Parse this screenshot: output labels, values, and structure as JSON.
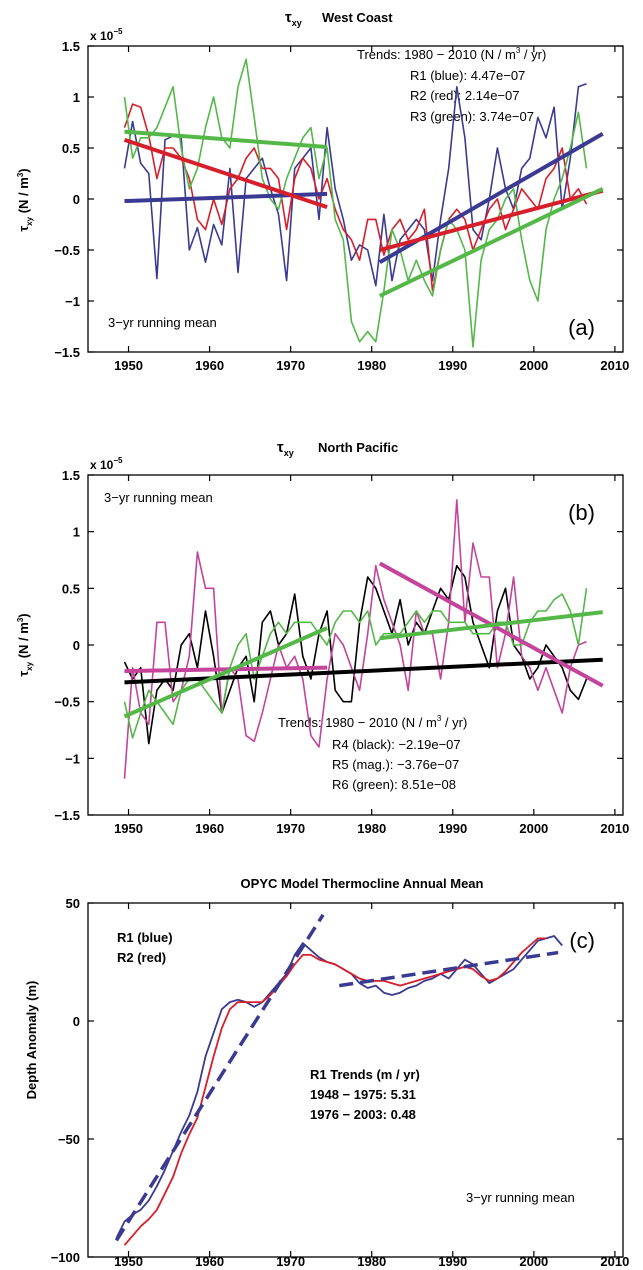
{
  "chart_data": [
    {
      "type": "line",
      "panel_label": "(a)",
      "title": "West Coast",
      "title_symbol": "τ",
      "title_symbol_sub": "xy",
      "scale_label": "x 10",
      "scale_exp": "−5",
      "ylabel_symbol": "τ",
      "ylabel_sub": "xy",
      "ylabel_unit": "(N / m",
      "ylabel_unit_exp": "3",
      "ylabel_unit_close": ")",
      "xlim": [
        1945,
        2011
      ],
      "ylim": [
        -1.5,
        1.5
      ],
      "x_ticks": [
        1950,
        1960,
        1970,
        1980,
        1990,
        2000,
        2010
      ],
      "y_ticks": [
        -1.5,
        -1,
        -0.5,
        0,
        0.5,
        1,
        1.5
      ],
      "y_tick_labels": [
        "−1.5",
        "−1",
        "−0.5",
        "0",
        "0.5",
        "1",
        "1.5"
      ],
      "annotations": {
        "trend_header": "Trends:  1980 − 2010  (N / m",
        "trend_header_exp": "3",
        "trend_header_close": " / yr)",
        "trend_lines": [
          "R1 (blue):  4.47e−07",
          "R2 (red):   2.14e−07",
          "R3 (green): 3.74e−07"
        ],
        "running_mean": "3−yr  running mean"
      },
      "series": [
        {
          "color": "#3b3a92",
          "x_start": 1949.5,
          "values": [
            0.3,
            0.76,
            0.35,
            0.25,
            -0.78,
            0.58,
            0.62,
            0.6,
            -0.5,
            -0.28,
            -0.62,
            -0.25,
            -0.45,
            0.3,
            -0.72,
            0.2,
            0.3,
            0.4,
            0.1,
            -0.15,
            -0.8,
            0.3,
            0.4,
            0.5,
            -0.2,
            0.7,
            0.1,
            -0.2,
            -0.6,
            -0.45,
            -0.5,
            -0.85,
            -0.15,
            -0.8,
            -0.4,
            -0.3,
            -0.2,
            -0.3,
            -0.8,
            -0.2,
            0.3,
            1.1,
            0.6,
            -0.3,
            -0.4,
            0.0,
            0.5,
            0.1,
            -0.1,
            0.3,
            0.4,
            0.8,
            0.6,
            0.9,
            -0.1,
            0.4,
            1.1,
            1.13
          ]
        },
        {
          "color": "#d71f2b",
          "x_start": 1949.5,
          "values": [
            0.7,
            0.93,
            0.9,
            0.62,
            0.2,
            0.5,
            0.5,
            0.4,
            0.2,
            -0.2,
            -0.3,
            0.0,
            -0.25,
            0.1,
            0.2,
            0.4,
            0.5,
            0.3,
            0.3,
            0.2,
            -0.3,
            0.2,
            0.4,
            0.3,
            0.0,
            0.2,
            -0.1,
            -0.3,
            -0.4,
            -0.6,
            -0.2,
            -0.2,
            -0.55,
            -0.3,
            -0.2,
            -0.4,
            -0.3,
            -0.1,
            -0.9,
            -0.5,
            -0.2,
            -0.1,
            -0.2,
            -0.5,
            -0.3,
            -0.1,
            0.0,
            -0.3,
            -0.1,
            0.1,
            0.0,
            -0.1,
            0.2,
            0.3,
            0.5,
            0.0,
            0.1,
            -0.05
          ]
        },
        {
          "color": "#54b848",
          "x_start": 1949.5,
          "values": [
            1.0,
            0.4,
            0.6,
            0.6,
            0.7,
            0.9,
            1.1,
            0.5,
            0.1,
            0.3,
            0.7,
            1.0,
            0.6,
            0.5,
            1.1,
            1.37,
            0.8,
            0.2,
            0.0,
            -0.1,
            0.2,
            0.4,
            0.6,
            0.7,
            0.2,
            0.5,
            -0.2,
            -0.4,
            -1.2,
            -1.4,
            -1.3,
            -1.4,
            -0.9,
            -0.3,
            -0.5,
            -0.8,
            -0.6,
            -0.8,
            -0.95,
            -0.5,
            -0.2,
            -0.3,
            -0.5,
            -1.45,
            -0.6,
            -0.3,
            -0.2,
            0.0,
            0.1,
            -0.4,
            -0.8,
            -1.0,
            -0.3,
            0.0,
            0.2,
            0.5,
            0.85,
            0.3
          ]
        }
      ],
      "trend_lines": [
        {
          "color": "#3b3a92",
          "x": [
            1949.5,
            1974.5
          ],
          "y": [
            -0.02,
            0.05
          ]
        },
        {
          "color": "#d71f2b",
          "x": [
            1949.5,
            1974.5
          ],
          "y": [
            0.58,
            -0.08
          ]
        },
        {
          "color": "#54b848",
          "x": [
            1949.5,
            1974.5
          ],
          "y": [
            0.66,
            0.51
          ]
        },
        {
          "color": "#3b3a92",
          "x": [
            1981,
            2008.5
          ],
          "y": [
            -0.62,
            0.64
          ]
        },
        {
          "color": "#d71f2b",
          "x": [
            1981,
            2008.5
          ],
          "y": [
            -0.5,
            0.08
          ]
        },
        {
          "color": "#54b848",
          "x": [
            1981,
            2008.5
          ],
          "y": [
            -0.95,
            0.1
          ]
        }
      ]
    },
    {
      "type": "line",
      "panel_label": "(b)",
      "title": "North  Pacific",
      "title_symbol": "τ",
      "title_symbol_sub": "xy",
      "scale_label": "x 10",
      "scale_exp": "−5",
      "ylabel_symbol": "τ",
      "ylabel_sub": "xy",
      "ylabel_unit": "(N / m",
      "ylabel_unit_exp": "3",
      "ylabel_unit_close": ")",
      "xlim": [
        1945,
        2011
      ],
      "ylim": [
        -1.5,
        1.5
      ],
      "x_ticks": [
        1950,
        1960,
        1970,
        1980,
        1990,
        2000,
        2010
      ],
      "y_ticks": [
        -1.5,
        -1,
        -0.5,
        0,
        0.5,
        1,
        1.5
      ],
      "y_tick_labels": [
        "−1.5",
        "−1",
        "−0.5",
        "0",
        "0.5",
        "1",
        "1.5"
      ],
      "annotations": {
        "trend_header": "Trends:  1980 − 2010  (N / m",
        "trend_header_exp": "3",
        "trend_header_close": " / yr)",
        "trend_lines": [
          "R4 (black):   −2.19e−07",
          "R5 (mag.):    −3.76e−07",
          "R6 (green):   8.51e−08"
        ],
        "running_mean": "3−yr  running mean"
      },
      "series": [
        {
          "color": "#000000",
          "x_start": 1949.5,
          "values": [
            -0.15,
            -0.3,
            -0.2,
            -0.87,
            -0.4,
            -0.3,
            -0.4,
            0.0,
            0.1,
            -0.2,
            0.3,
            -0.1,
            -0.6,
            -0.4,
            -0.2,
            -0.1,
            -0.5,
            0.2,
            0.3,
            0.0,
            0.1,
            0.45,
            -0.1,
            -0.3,
            0.1,
            0.3,
            -0.4,
            -0.5,
            -0.5,
            0.2,
            0.6,
            0.5,
            0.3,
            0.1,
            0.4,
            0.0,
            0.2,
            0.1,
            0.3,
            0.5,
            0.4,
            0.7,
            0.6,
            0.2,
            0.0,
            -0.2,
            0.3,
            0.5,
            0.0,
            -0.1,
            -0.3,
            -0.2,
            0.0,
            -0.1,
            -0.2,
            -0.4,
            -0.48,
            -0.3
          ]
        },
        {
          "color": "#c3449a",
          "x_start": 1949.5,
          "values": [
            -1.18,
            -0.2,
            -0.6,
            -0.7,
            0.2,
            0.2,
            -0.5,
            -0.4,
            -0.1,
            0.82,
            0.5,
            0.5,
            -0.6,
            -0.2,
            -0.3,
            -0.8,
            -0.85,
            -0.6,
            -0.3,
            0.0,
            -0.2,
            -0.1,
            -0.3,
            -0.8,
            -0.9,
            -0.3,
            0.1,
            0.0,
            -0.2,
            -0.4,
            0.1,
            0.7,
            0.4,
            0.2,
            0.0,
            -0.4,
            0.3,
            0.1,
            0.1,
            -0.3,
            0.2,
            1.28,
            0.2,
            0.9,
            0.6,
            0.6,
            -0.2,
            0.1,
            0.6,
            -0.1,
            -0.2,
            -0.4,
            -0.2,
            -0.4,
            -0.6,
            -0.2,
            0.0,
            0.03
          ]
        },
        {
          "color": "#54b848",
          "x_start": 1949.5,
          "values": [
            -0.5,
            -0.82,
            -0.6,
            -0.4,
            -0.5,
            -0.6,
            -0.7,
            -0.4,
            -0.3,
            -0.3,
            -0.4,
            -0.5,
            -0.6,
            -0.2,
            0.0,
            0.1,
            -0.3,
            -0.1,
            0.1,
            0.2,
            0.1,
            0.2,
            0.2,
            0.2,
            0.1,
            0.0,
            0.2,
            0.3,
            0.3,
            0.2,
            0.3,
            0.0,
            0.1,
            0.1,
            0.1,
            0.2,
            0.3,
            0.2,
            0.3,
            0.3,
            0.2,
            0.2,
            0.2,
            0.1,
            0.1,
            0.1,
            0.2,
            0.2,
            0.0,
            0.0,
            0.2,
            0.3,
            0.3,
            0.4,
            0.45,
            0.3,
            0.0,
            0.5
          ]
        }
      ],
      "trend_lines": [
        {
          "color": "#000000",
          "x": [
            1949.5,
            2008.5
          ],
          "y": [
            -0.33,
            -0.13
          ]
        },
        {
          "color": "#c3449a",
          "x": [
            1949.5,
            1974.5
          ],
          "y": [
            -0.23,
            -0.2
          ]
        },
        {
          "color": "#54b848",
          "x": [
            1949.5,
            1974.5
          ],
          "y": [
            -0.63,
            0.15
          ]
        },
        {
          "color": "#c3449a",
          "x": [
            1981,
            2008.5
          ],
          "y": [
            0.72,
            -0.36
          ]
        },
        {
          "color": "#54b848",
          "x": [
            1981,
            2008.5
          ],
          "y": [
            0.06,
            0.29
          ]
        }
      ]
    },
    {
      "type": "line",
      "panel_label": "(c)",
      "title": "OPYC  Model  Thermocline  Annual  Mean",
      "ylabel": "Depth  Anomaly  (m)",
      "xlim": [
        1945,
        2011
      ],
      "ylim": [
        -100,
        50
      ],
      "x_ticks": [
        1950,
        1960,
        1970,
        1980,
        1990,
        2000,
        2010
      ],
      "y_ticks": [
        -100,
        -50,
        0,
        50
      ],
      "y_tick_labels": [
        "−100",
        "−50",
        "0",
        "50"
      ],
      "annotations": {
        "legend_lines": [
          "R1  (blue)",
          "R2  (red)"
        ],
        "trend_lines": [
          "R1  Trends  (m / yr)",
          "1948 − 1975:  5.31",
          "1976 − 2003:  0.48"
        ],
        "running_mean": "3−yr  running mean"
      },
      "series": [
        {
          "color": "#3b3a92",
          "x": [
            1948.5,
            1949.5,
            1950.5,
            1951.5,
            1952.5,
            1953.5,
            1954.5,
            1955.5,
            1956.5,
            1957.5,
            1958.5,
            1959.5,
            1960.5,
            1961.5,
            1962.5,
            1963.5,
            1964.5,
            1965.5,
            1966.5,
            1967.5,
            1968.5,
            1969.5,
            1970.5,
            1971.5,
            1972.5,
            1973.5,
            1974.5,
            1975.5,
            1976.5,
            1977.5,
            1978.5,
            1979.5,
            1980.5,
            1981.5,
            1982.5,
            1983.5,
            1984.5,
            1985.5,
            1986.5,
            1987.5,
            1988.5,
            1989.5,
            1990.5,
            1991.5,
            1992.5,
            1993.5,
            1994.5,
            1995.5,
            1996.5,
            1997.5,
            1998.5,
            1999.5,
            2000.5,
            2001.5,
            2002.5,
            2003.5
          ],
          "values": [
            -92,
            -85,
            -82,
            -80,
            -76,
            -70,
            -63,
            -55,
            -47,
            -40,
            -30,
            -15,
            -5,
            5,
            8,
            9,
            8,
            6,
            8,
            12,
            16,
            20,
            28,
            33,
            30,
            27,
            25,
            24,
            22,
            20,
            16,
            14,
            15,
            12,
            11,
            12,
            14,
            15,
            17,
            18,
            20,
            18,
            22,
            26,
            24,
            20,
            16,
            18,
            20,
            22,
            26,
            30,
            34,
            35,
            36,
            32
          ]
        },
        {
          "color": "#d71f2b",
          "x": [
            1949.5,
            1950.5,
            1951.5,
            1952.5,
            1953.5,
            1954.5,
            1955.5,
            1956.5,
            1957.5,
            1958.5,
            1959.5,
            1960.5,
            1961.5,
            1962.5,
            1963.5,
            1964.5,
            1965.5,
            1966.5,
            1967.5,
            1968.5,
            1969.5,
            1970.5,
            1971.5,
            1972.5,
            1973.5,
            1974.5,
            1975.5,
            1976.5,
            1977.5,
            1978.5,
            1979.5,
            1980.5,
            1981.5,
            1982.5,
            1983.5,
            1984.5,
            1985.5,
            1986.5,
            1987.5,
            1988.5,
            1989.5,
            1990.5,
            1991.5,
            1992.5,
            1993.5,
            1994.5,
            1995.5,
            1996.5,
            1997.5,
            1998.5,
            1999.5,
            2000.5,
            2001.5
          ],
          "values": [
            -95,
            -91,
            -87,
            -84,
            -80,
            -73,
            -66,
            -56,
            -48,
            -41,
            -28,
            -15,
            -3,
            5,
            8,
            8,
            8,
            8,
            11,
            15,
            19,
            24,
            28,
            28,
            26,
            25,
            24,
            22,
            20,
            18,
            17,
            17,
            17,
            16,
            15,
            16,
            17,
            18,
            19,
            20,
            21,
            22,
            23,
            22,
            19,
            17,
            18,
            21,
            25,
            29,
            32,
            35,
            35
          ]
        }
      ],
      "trend_lines": [
        {
          "color": "#3b3a92",
          "x": [
            1948.5,
            1974
          ],
          "y": [
            -93,
            45
          ]
        },
        {
          "color": "#3b3a92",
          "x": [
            1976,
            2003
          ],
          "y": [
            15,
            29
          ]
        }
      ]
    }
  ]
}
